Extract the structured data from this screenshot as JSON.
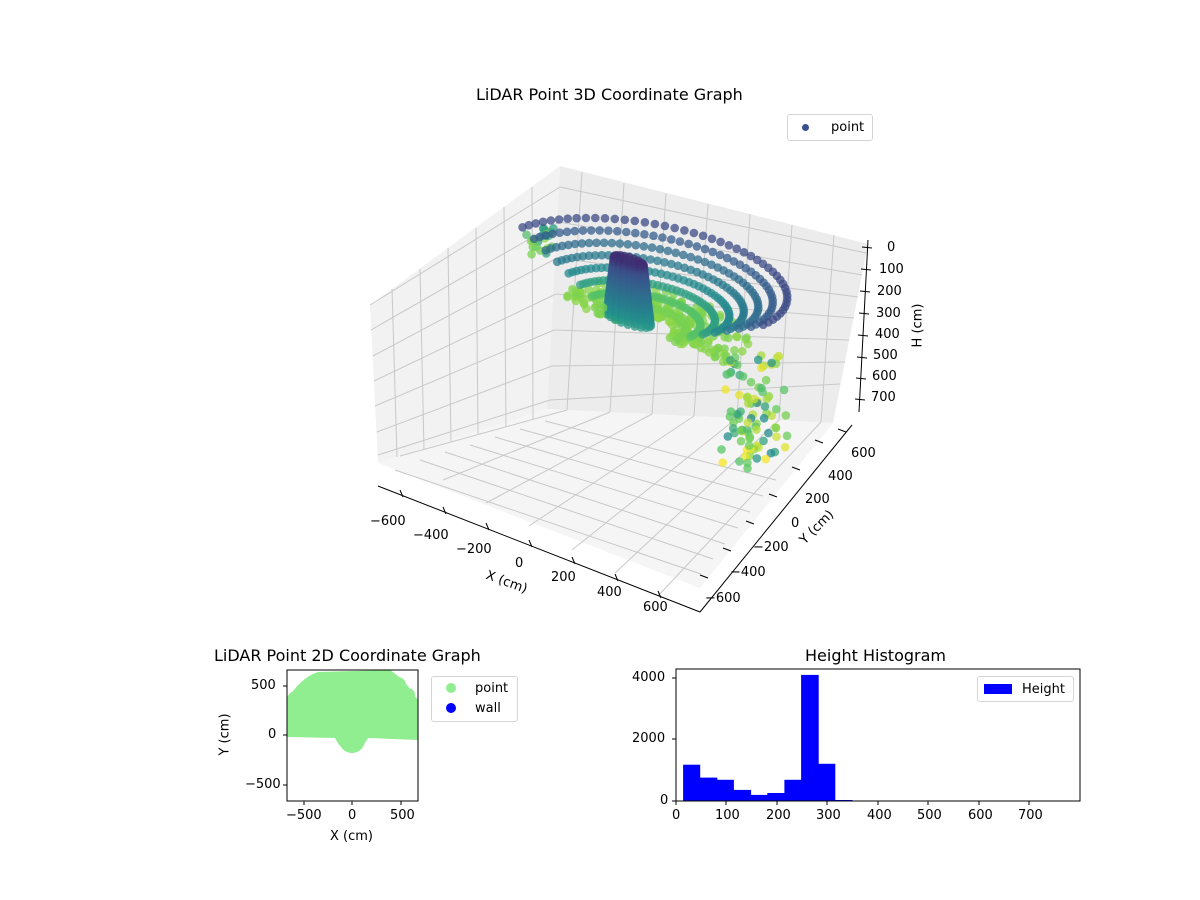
{
  "chart_data": [
    {
      "type": "scatter3d",
      "title": "LiDAR Point 3D Coordinate Graph",
      "xlabel": "X (cm)",
      "ylabel": "Y (cm)",
      "zlabel": "H (cm)",
      "xticks": [
        "−600",
        "−400",
        "−200",
        "0",
        "200",
        "400",
        "600"
      ],
      "yticks": [
        "−600",
        "−400",
        "−200",
        "0",
        "200",
        "400",
        "600"
      ],
      "zticks": [
        "0",
        "100",
        "200",
        "300",
        "400",
        "500",
        "600",
        "700"
      ],
      "zlim": [
        0,
        750
      ],
      "zinverted": true,
      "colormap": "viridis",
      "legend": [
        {
          "label": "point",
          "color": "#3b4f8d"
        }
      ],
      "description": "Semi-circular dome-like arc of points (radius ~550 cm) spanning front half-plane, a central cylindrical column near origin, scattered outlier points at left and right edges; color by height"
    },
    {
      "type": "scatter",
      "title": "LiDAR Point 2D Coordinate Graph",
      "xlabel": "X (cm)",
      "ylabel": "Y (cm)",
      "xticks": [
        "−500",
        "0",
        "500"
      ],
      "yticks": [
        "−500",
        "0",
        "500"
      ],
      "xlim": [
        -660,
        660
      ],
      "ylim": [
        -660,
        660
      ],
      "legend": [
        {
          "label": "point",
          "color": "#90ee90"
        },
        {
          "label": "wall",
          "color": "#0000ff"
        }
      ],
      "description": "Light-green filled semicircular region for Y from about 0 to 660 across full X range, with a small bulge down to Y≈-100 near X=0"
    },
    {
      "type": "bar",
      "title": "Height Histogram",
      "xlabel": "",
      "ylabel": "",
      "xticks": [
        "0",
        "100",
        "200",
        "300",
        "400",
        "500",
        "600",
        "700"
      ],
      "yticks": [
        "0",
        "2000",
        "4000"
      ],
      "xlim": [
        0,
        800
      ],
      "ylim": [
        0,
        4300
      ],
      "legend": [
        {
          "label": "Height",
          "color": "#0000ff"
        }
      ],
      "bin_edges": [
        14,
        47,
        81,
        114,
        148,
        181,
        215,
        248,
        282,
        315,
        349,
        382,
        416,
        449,
        483,
        516,
        550,
        583,
        617,
        650,
        684,
        717,
        751,
        784
      ],
      "values": [
        1180,
        760,
        690,
        360,
        200,
        260,
        690,
        4100,
        1210,
        30,
        0,
        0,
        0,
        0,
        0,
        0,
        0,
        0,
        0,
        0,
        0,
        0,
        0
      ],
      "color": "#0000ff"
    }
  ]
}
